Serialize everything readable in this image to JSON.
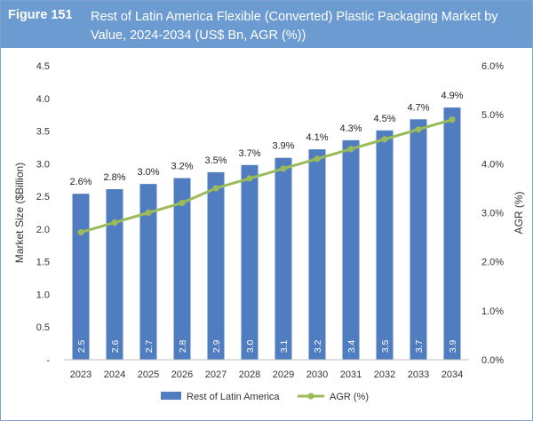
{
  "figure": {
    "label": "Figure 151",
    "title": "Rest of Latin America Flexible (Converted) Plastic Packaging Market by Value, 2024-2034 (US$ Bn, AGR (%))"
  },
  "chart_data": {
    "type": "bar",
    "categories": [
      "2023",
      "2024",
      "2025",
      "2026",
      "2027",
      "2028",
      "2029",
      "2030",
      "2031",
      "2032",
      "2033",
      "2034"
    ],
    "series": [
      {
        "name": "Rest of Latin America",
        "type": "bar",
        "axis": "left",
        "values": [
          2.5,
          2.6,
          2.7,
          2.8,
          2.9,
          3.0,
          3.1,
          3.2,
          3.4,
          3.5,
          3.7,
          3.9
        ],
        "exact_values": [
          2.54,
          2.61,
          2.69,
          2.78,
          2.87,
          2.98,
          3.09,
          3.22,
          3.36,
          3.51,
          3.68,
          3.86
        ],
        "labels": [
          "2.5",
          "2.6",
          "2.7",
          "2.8",
          "2.9",
          "3.0",
          "3.1",
          "3.2",
          "3.4",
          "3.5",
          "3.7",
          "3.9"
        ],
        "color": "#4f7dc0"
      },
      {
        "name": "AGR (%)",
        "type": "line",
        "axis": "right",
        "values": [
          2.6,
          2.8,
          3.0,
          3.2,
          3.5,
          3.7,
          3.9,
          4.1,
          4.3,
          4.5,
          4.7,
          4.9
        ],
        "labels": [
          "2.6%",
          "2.8%",
          "3.0%",
          "3.2%",
          "3.5%",
          "3.7%",
          "3.9%",
          "4.1%",
          "4.3%",
          "4.5%",
          "4.7%",
          "4.9%"
        ],
        "color": "#9bbb59"
      }
    ],
    "ylabel": "Market Size ($Billion)",
    "y2label": "AGR (%)",
    "ylim": [
      0,
      4.5
    ],
    "y2lim": [
      0,
      6.0
    ],
    "yticks": [
      "-",
      "0.5",
      "1.0",
      "1.5",
      "2.0",
      "2.5",
      "3.0",
      "3.5",
      "4.0",
      "4.5"
    ],
    "y2ticks": [
      "0.0%",
      "1.0%",
      "2.0%",
      "3.0%",
      "4.0%",
      "5.0%",
      "6.0%"
    ],
    "grid": false,
    "legend": "bottom"
  }
}
